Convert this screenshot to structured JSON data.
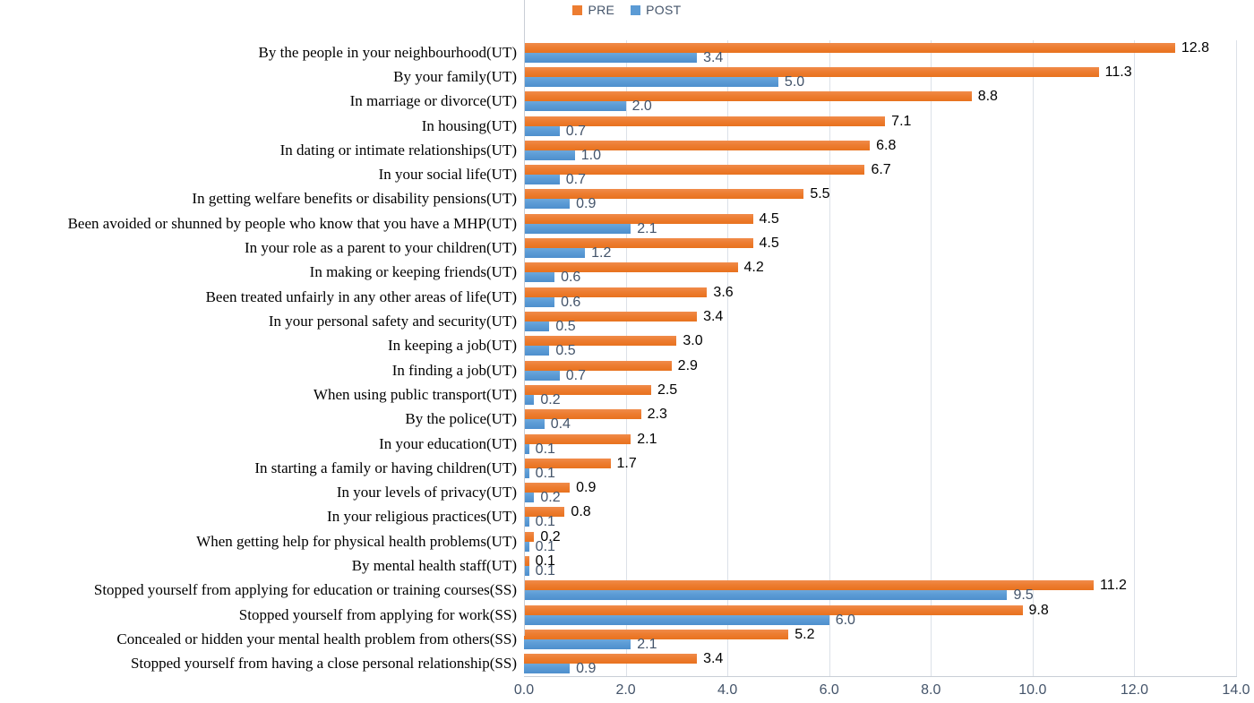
{
  "legend": {
    "pre_label": "PRE",
    "post_label": "POST"
  },
  "colors": {
    "pre": "#ED7D31",
    "post": "#5B9BD5",
    "axis_text": "#44546A",
    "pre_value_text": "#000000",
    "post_value_text": "#44546A",
    "gridline": "#DCE1E8"
  },
  "chart_data": {
    "type": "bar",
    "orientation": "horizontal",
    "title": "",
    "xlabel": "",
    "ylabel": "",
    "xlim": [
      0,
      14
    ],
    "x_ticks": [
      "0.0",
      "2.0",
      "4.0",
      "6.0",
      "8.0",
      "10.0",
      "12.0",
      "14.0"
    ],
    "grid": true,
    "legend_position": "top",
    "data_labels": true,
    "categories": [
      "By the people in your neighbourhood(UT)",
      "By your family(UT)",
      "In marriage or divorce(UT)",
      "In housing(UT)",
      "In dating or intimate relationships(UT)",
      "In your social life(UT)",
      "In getting welfare benefits or disability pensions(UT)",
      "Been avoided or shunned by people who know that you have a MHP(UT)",
      "In your role as a parent to your children(UT)",
      "In making or keeping friends(UT)",
      "Been treated unfairly in any other areas of life(UT)",
      "In your personal safety and security(UT)",
      "In keeping a job(UT)",
      "In finding a job(UT)",
      "When using public transport(UT)",
      "By the police(UT)",
      "In your education(UT)",
      "In starting a family or having children(UT)",
      "In your levels of privacy(UT)",
      "In your religious practices(UT)",
      "When getting help for physical health problems(UT)",
      "By mental health staff(UT)",
      "Stopped yourself from applying for education or training courses(SS)",
      "Stopped yourself from applying for work(SS)",
      "Concealed or hidden your mental health problem from others(SS)",
      "Stopped yourself from having a close personal relationship(SS)"
    ],
    "series": [
      {
        "name": "PRE",
        "values": [
          12.8,
          11.3,
          8.8,
          7.1,
          6.8,
          6.7,
          5.5,
          4.5,
          4.5,
          4.2,
          3.6,
          3.4,
          3.0,
          2.9,
          2.5,
          2.3,
          2.1,
          1.7,
          0.9,
          0.8,
          0.2,
          0.1,
          11.2,
          9.8,
          5.2,
          3.4
        ]
      },
      {
        "name": "POST",
        "values": [
          3.4,
          5.0,
          2.0,
          0.7,
          1.0,
          0.7,
          0.9,
          2.1,
          1.2,
          0.6,
          0.6,
          0.5,
          0.5,
          0.7,
          0.2,
          0.4,
          0.1,
          0.1,
          0.2,
          0.1,
          0.1,
          0.1,
          9.5,
          6.0,
          2.1,
          0.9
        ]
      }
    ]
  }
}
